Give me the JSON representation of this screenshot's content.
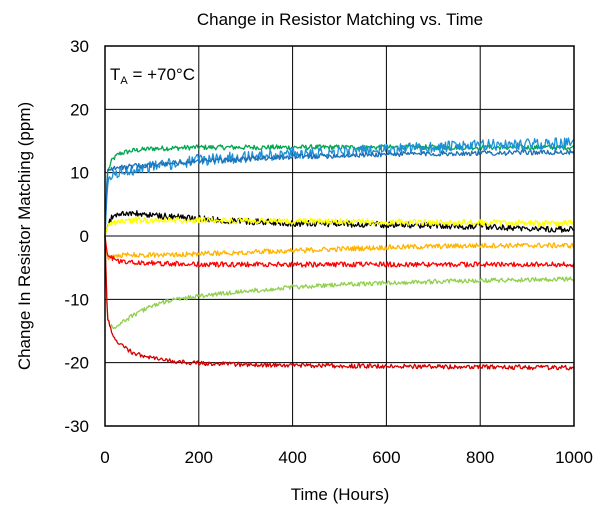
{
  "chart_data": {
    "type": "line",
    "title": "Change in Resistor Matching vs. Time",
    "xlabel": "Time (Hours)",
    "ylabel": "Change In Resistor Matching (ppm)",
    "annotation": {
      "base": "T",
      "sub": "A",
      "rest": " = +70°C"
    },
    "xlim": [
      0,
      1000
    ],
    "ylim": [
      -30,
      30
    ],
    "xticks": [
      0,
      200,
      400,
      600,
      800,
      1000
    ],
    "yticks": [
      30,
      20,
      10,
      0,
      -10,
      -20,
      -30
    ],
    "xtick_labels": [
      "0",
      "200",
      "400",
      "600",
      "800",
      "1000"
    ],
    "ytick_labels": [
      "30",
      "20",
      "10",
      "0",
      "-10",
      "-20",
      "-30"
    ],
    "grid": true,
    "legend": "none",
    "series": [
      {
        "color": "#00a650",
        "x": [
          0,
          5,
          15,
          30,
          60,
          100,
          200,
          300,
          400,
          500,
          600,
          700,
          800,
          900,
          1000
        ],
        "values": [
          0,
          10,
          12,
          13,
          13.5,
          13.8,
          14,
          14,
          14,
          14,
          14,
          14,
          14,
          14,
          14
        ],
        "noise": 0.4
      },
      {
        "color": "#1e90d8",
        "x": [
          0,
          5,
          15,
          30,
          60,
          100,
          200,
          300,
          400,
          500,
          600,
          700,
          800,
          900,
          1000
        ],
        "values": [
          0,
          8,
          9.5,
          10,
          10.5,
          11,
          12,
          12.5,
          13,
          13.3,
          13.6,
          14,
          14.3,
          14.5,
          14.7
        ],
        "noise": 0.9
      },
      {
        "color": "#1f6fb5",
        "x": [
          0,
          5,
          15,
          30,
          60,
          100,
          200,
          300,
          400,
          500,
          600,
          700,
          800,
          900,
          1000
        ],
        "values": [
          0,
          10.5,
          10.7,
          10.8,
          11,
          11.2,
          11.8,
          12.2,
          12.5,
          12.7,
          12.9,
          13,
          13.1,
          13.2,
          13.2
        ],
        "noise": 0.4
      },
      {
        "color": "#000000",
        "x": [
          0,
          5,
          15,
          30,
          50,
          80,
          150,
          250,
          400,
          600,
          800,
          1000
        ],
        "values": [
          0,
          1.5,
          3,
          3.5,
          3.6,
          3.4,
          3,
          2.5,
          2,
          1.8,
          1.5,
          1
        ],
        "noise": 0.5
      },
      {
        "color": "#ffff00",
        "x": [
          0,
          5,
          15,
          30,
          60,
          100,
          200,
          400,
          600,
          800,
          1000
        ],
        "values": [
          0,
          1.5,
          2,
          2.3,
          2.5,
          2.5,
          2.5,
          2.3,
          2.2,
          2.1,
          2
        ],
        "noise": 0.5
      },
      {
        "color": "#ffb300",
        "x": [
          0,
          5,
          15,
          30,
          60,
          100,
          200,
          400,
          600,
          800,
          1000
        ],
        "values": [
          0,
          -3.5,
          -3.2,
          -3,
          -3,
          -3,
          -2.8,
          -2.3,
          -1.8,
          -1.5,
          -1.5
        ],
        "noise": 0.4
      },
      {
        "color": "#ff0000",
        "x": [
          0,
          5,
          15,
          30,
          60,
          100,
          200,
          400,
          600,
          800,
          1000
        ],
        "values": [
          0,
          -3,
          -3.5,
          -4,
          -4.2,
          -4.3,
          -4.5,
          -4.5,
          -4.5,
          -4.5,
          -4.5
        ],
        "noise": 0.4
      },
      {
        "color": "#92d050",
        "x": [
          0,
          5,
          15,
          30,
          60,
          100,
          150,
          200,
          300,
          400,
          500,
          600,
          800,
          1000
        ],
        "values": [
          0,
          -13,
          -14.5,
          -14,
          -12.5,
          -11,
          -10,
          -9.5,
          -8.7,
          -8.1,
          -7.7,
          -7.4,
          -7,
          -6.8
        ],
        "noise": 0.35
      },
      {
        "color": "#d40000",
        "x": [
          0,
          5,
          15,
          30,
          60,
          100,
          150,
          200,
          300,
          500,
          700,
          1000
        ],
        "values": [
          0,
          -13,
          -15.5,
          -17,
          -18.5,
          -19.3,
          -19.8,
          -20.1,
          -20.3,
          -20.5,
          -20.6,
          -20.8
        ],
        "noise": 0.35
      }
    ]
  }
}
